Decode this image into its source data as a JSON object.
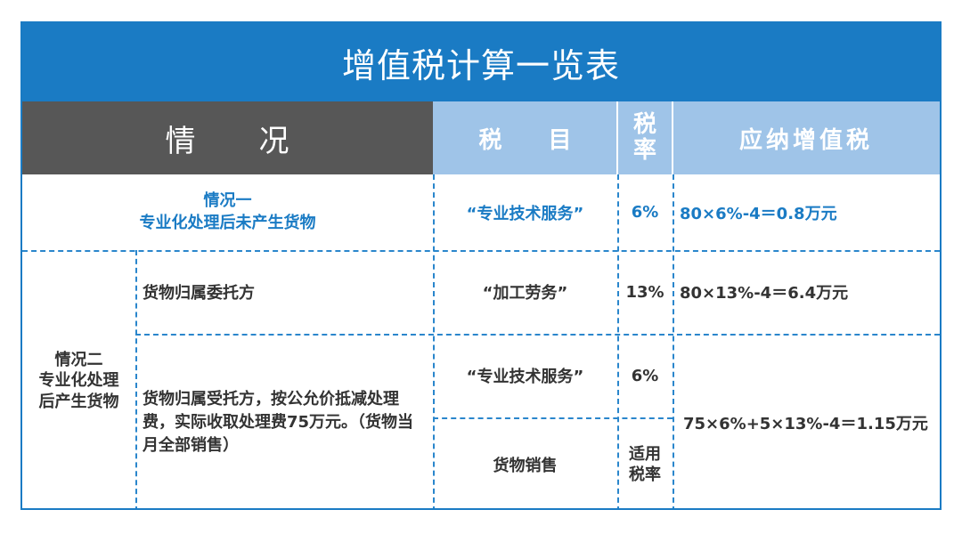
{
  "title": "增值税计算一览表",
  "headers": {
    "situation": "情　　况",
    "tax_item": "税　　目",
    "tax_rate_line1": "税",
    "tax_rate_line2": "率",
    "vat_payable": "应纳增值税"
  },
  "case1": {
    "title": "情况一",
    "subtitle": "专业化处理后未产生货物",
    "item": "“专业技术服务”",
    "rate": "6%",
    "vat": "80×6%-4＝0.8万元"
  },
  "case2": {
    "label_line1": "情况二",
    "label_line2": "专业化处理",
    "label_line3": "后产生货物",
    "sub_a": {
      "desc": "货物归属委托方",
      "item": "“加工劳务”",
      "rate": "13%",
      "vat": "80×13%-4＝6.4万元"
    },
    "sub_b": {
      "desc": "货物归属受托方，按公允价抵减处理费，实际收取处理费75万元。（货物当月全部销售）",
      "item1": "“专业技术服务”",
      "rate1": "6%",
      "item2": "货物销售",
      "rate2_line1": "适用",
      "rate2_line2": "税率",
      "vat": "75×6%+5×13%-4＝1.15万元"
    }
  }
}
